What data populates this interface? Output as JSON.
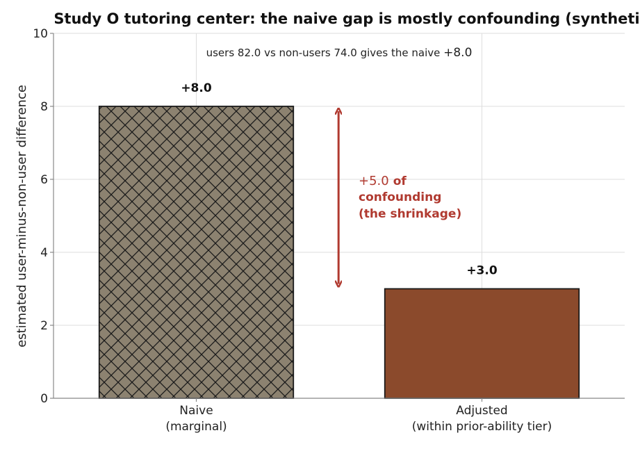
{
  "chart_data": {
    "type": "bar",
    "title": "Study O tutoring center: the naive gap is mostly confounding (synthetic)",
    "ylabel": "estimated user-minus-non-user difference",
    "xlabel": "",
    "ylim": [
      0,
      10
    ],
    "yticks": [
      0,
      2,
      4,
      6,
      8,
      10
    ],
    "grid": true,
    "categories": [
      {
        "line1": "Naive",
        "line2": "(marginal)"
      },
      {
        "line1": "Adjusted",
        "line2": "(within prior-ability tier)"
      }
    ],
    "values": [
      8.0,
      3.0
    ],
    "data_labels": [
      "+8.0",
      "+3.0"
    ],
    "bar_styles": [
      {
        "fill": "#8c8270",
        "pattern": "crosshatch",
        "edge": "#1a1a1a"
      },
      {
        "fill": "#8b4a2c",
        "pattern": "none",
        "edge": "#1a1a1a"
      }
    ],
    "top_note": {
      "text": "users 82.0 vs non-users 74.0 gives the naive ",
      "strong": "+8.0"
    },
    "annotation": {
      "from": 3.0,
      "to": 8.0,
      "color": "#b03a30",
      "value_text": "+5.0",
      "line1_rest": "of",
      "line2": "confounding",
      "line3": "(the shrinkage)"
    }
  }
}
